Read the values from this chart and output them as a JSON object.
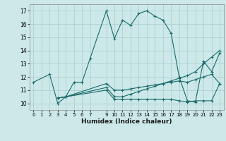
{
  "xlabel": "Humidex (Indice chaleur)",
  "bg_color": "#cce8e8",
  "grid_color": "#aacccc",
  "line_color": "#1a6b6b",
  "xlim": [
    -0.5,
    23.5
  ],
  "ylim": [
    9.5,
    17.5
  ],
  "xticks": [
    0,
    1,
    2,
    3,
    4,
    5,
    6,
    7,
    9,
    10,
    11,
    12,
    13,
    14,
    15,
    16,
    17,
    18,
    19,
    20,
    21,
    22,
    23
  ],
  "yticks": [
    10,
    11,
    12,
    13,
    14,
    15,
    16,
    17
  ],
  "series": [
    {
      "x": [
        0,
        2,
        3,
        4,
        5,
        6,
        7,
        9,
        10,
        11,
        12,
        13,
        14,
        15,
        16,
        17,
        18,
        19,
        20,
        21,
        22,
        23
      ],
      "y": [
        11.6,
        12.2,
        10.0,
        10.5,
        11.6,
        11.6,
        13.4,
        17.0,
        14.9,
        16.3,
        15.9,
        16.8,
        17.0,
        16.6,
        16.3,
        15.3,
        12.0,
        10.2,
        10.1,
        13.2,
        12.4,
        13.8
      ]
    },
    {
      "x": [
        3,
        4,
        9,
        10,
        11,
        12,
        13,
        14,
        15,
        16,
        17,
        18,
        19,
        20,
        21,
        22,
        23
      ],
      "y": [
        10.4,
        10.5,
        11.0,
        10.3,
        10.3,
        10.3,
        10.3,
        10.3,
        10.3,
        10.3,
        10.3,
        10.2,
        10.1,
        10.2,
        10.2,
        10.2,
        11.5
      ]
    },
    {
      "x": [
        3,
        4,
        9,
        10,
        11,
        12,
        13,
        14,
        15,
        16,
        17,
        18,
        19,
        20,
        21,
        22,
        23
      ],
      "y": [
        10.4,
        10.5,
        11.2,
        10.5,
        10.5,
        10.7,
        10.9,
        11.1,
        11.3,
        11.5,
        11.7,
        11.9,
        12.1,
        12.4,
        13.0,
        13.5,
        14.0
      ]
    },
    {
      "x": [
        3,
        4,
        9,
        10,
        11,
        12,
        13,
        14,
        15,
        16,
        17,
        18,
        19,
        20,
        21,
        22,
        23
      ],
      "y": [
        10.4,
        10.5,
        11.5,
        11.0,
        11.0,
        11.1,
        11.2,
        11.3,
        11.4,
        11.5,
        11.6,
        11.7,
        11.6,
        11.8,
        12.0,
        12.2,
        11.5
      ]
    }
  ]
}
